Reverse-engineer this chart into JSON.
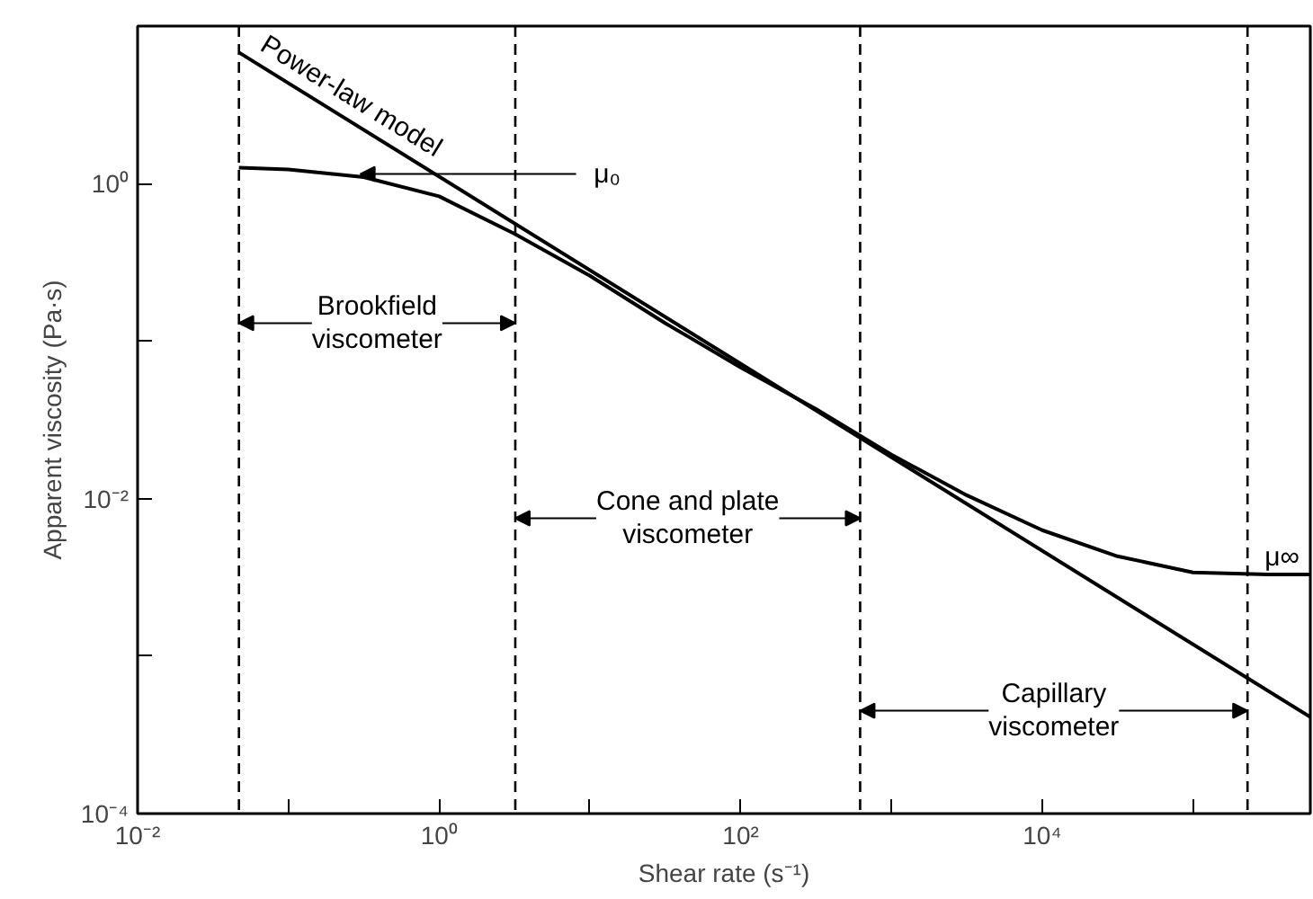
{
  "chart_data": {
    "type": "line",
    "xlabel": "Shear rate (s⁻¹)",
    "ylabel": "Apparent viscosity (Pa·s)",
    "log": "xy",
    "grid": false,
    "marker": "none",
    "line_style": "solid",
    "xlim": [
      0.01,
      600000
    ],
    "ylim": [
      0.0001,
      10
    ],
    "xticks": [
      {
        "value": 0.01,
        "label": "10⁻²"
      },
      {
        "value": 0.1,
        "label": null
      },
      {
        "value": 1,
        "label": "10⁰"
      },
      {
        "value": 10,
        "label": null
      },
      {
        "value": 100,
        "label": "10²"
      },
      {
        "value": 1000,
        "label": null
      },
      {
        "value": 10000,
        "label": "10⁴"
      },
      {
        "value": 100000,
        "label": null
      }
    ],
    "yticks": [
      {
        "value": 0.0001,
        "label": "10⁻⁴"
      },
      {
        "value": 0.001,
        "label": null
      },
      {
        "value": 0.01,
        "label": "10⁻²"
      },
      {
        "value": 0.1,
        "label": null
      },
      {
        "value": 1,
        "label": "10⁰"
      }
    ],
    "series": [
      {
        "color": "#000000",
        "x": [
          0.047,
          0.1,
          0.316,
          1,
          3.16,
          10,
          31.6,
          100,
          316,
          1000,
          3160,
          10000,
          31600,
          100000,
          316000,
          600000
        ],
        "values": [
          1.26,
          1.23,
          1.1,
          0.83,
          0.48,
          0.26,
          0.13,
          0.068,
          0.037,
          0.019,
          0.0105,
          0.0063,
          0.0043,
          0.0034,
          0.0033,
          0.0033
        ]
      },
      {
        "color": "#000000",
        "x": [
          0.047,
          600000
        ],
        "values": [
          6.8,
          0.00041
        ]
      }
    ],
    "ref_lines": [
      {
        "axis": "x",
        "value": 0.047,
        "color": "#000000",
        "line_style": "dashed"
      },
      {
        "axis": "x",
        "value": 3.2,
        "color": "#000000",
        "line_style": "dashed"
      },
      {
        "axis": "x",
        "value": 620,
        "color": "#000000",
        "line_style": "dashed"
      },
      {
        "axis": "x",
        "value": 230000,
        "color": "#000000",
        "line_style": "dashed"
      }
    ],
    "annotations": [
      {
        "text": "Power-law model",
        "x": 0.06,
        "y": 6.5
      },
      {
        "text": "μ₀",
        "x": 0.3,
        "y": 1.15
      },
      "μ∞",
      {
        "text": "Brookfield\nviscometer",
        "x": 0.047,
        "y": 0.13
      },
      {
        "text": "Cone and plate\nviscometer",
        "x": 3.2,
        "y": 0.0075
      },
      {
        "text": "Capillary\nviscometer",
        "x": 620,
        "y": 0.00045
      }
    ]
  }
}
